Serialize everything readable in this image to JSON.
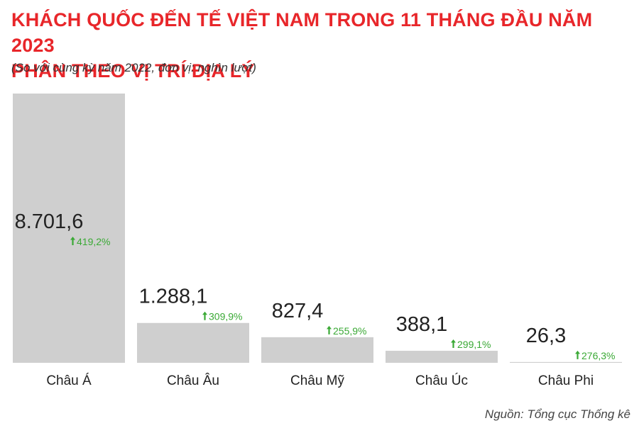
{
  "title_line1": "KHÁCH QUỐC ĐẾN TẾ VIỆT NAM TRONG 11 THÁNG ĐẦU NĂM 2023",
  "title_line2": "PHÂN THEO VỊ TRÍ ĐỊA LÝ",
  "subtitle": "(So với cùng kỳ năm 2022, đơn vị: nghìn lượt)",
  "source": "Nguồn: Tổng cục Thống kê",
  "colors": {
    "title": "#e8262a",
    "bar": "#cfcfcf",
    "growth": "#3aa935",
    "text": "#222222"
  },
  "chart_data": {
    "type": "bar",
    "title": "KHÁCH QUỐC ĐẾN TẾ VIỆT NAM TRONG 11 THÁNG ĐẦU NĂM 2023 PHÂN THEO VỊ TRÍ ĐỊA LÝ",
    "categories": [
      "Châu Á",
      "Châu Âu",
      "Châu Mỹ",
      "Châu Úc",
      "Châu Phi"
    ],
    "values": [
      8701.6,
      1288.1,
      827.4,
      388.1,
      26.3
    ],
    "value_labels": [
      "8.701,6",
      "1.288,1",
      "827,4",
      "388,1",
      "26,3"
    ],
    "growth_labels": [
      "419,2%",
      "309,9%",
      "255,9%",
      "299,1%",
      "276,3%"
    ],
    "growth_icon": "arrow-up-icon",
    "ylim": [
      0,
      8701.6
    ],
    "grid": false,
    "legend": "none"
  }
}
